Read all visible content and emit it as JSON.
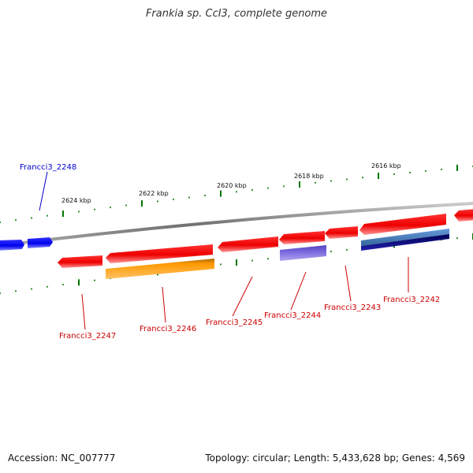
{
  "title": "Frankia sp. CcI3, complete genome",
  "accession": "Accession: NC_007777",
  "summary": "Topology: circular; Length: 5,433,628 bp; Genes: 4,569",
  "scale_labels": [
    "2624 kbp",
    "2622 kbp",
    "2620 kbp",
    "2618 kbp",
    "2616 kbp"
  ],
  "genes": [
    {
      "id": "gene-2248",
      "label": "Francci3_2248",
      "color": "#0000cc"
    },
    {
      "id": "gene-2247",
      "label": "Francci3_2247",
      "color": "#cc0000"
    },
    {
      "id": "gene-2246",
      "label": "Francci3_2246",
      "color": "#cc0000"
    },
    {
      "id": "gene-2245",
      "label": "Francci3_2245",
      "color": "#cc0000"
    },
    {
      "id": "gene-2244",
      "label": "Francci3_2244",
      "color": "#cc0000"
    },
    {
      "id": "gene-2243",
      "label": "Francci3_2243",
      "color": "#cc0000"
    },
    {
      "id": "gene-2242",
      "label": "Francci3_2242",
      "color": "#cc0000"
    }
  ],
  "colors": {
    "backbone": "#808080",
    "forward_gene": "#0000ee",
    "reverse_gene": "#ee0000",
    "feature_orange": "#ff9900",
    "feature_purple": "#7766dd",
    "feature_steelblue": "#4477bb",
    "feature_navy": "#000077",
    "tick": "#007700"
  }
}
